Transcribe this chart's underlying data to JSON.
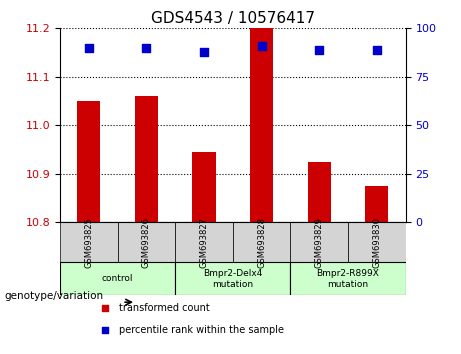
{
  "title": "GDS4543 / 10576417",
  "samples": [
    "GSM693825",
    "GSM693826",
    "GSM693827",
    "GSM693828",
    "GSM693829",
    "GSM693830"
  ],
  "transformed_counts": [
    11.05,
    11.06,
    10.945,
    11.2,
    10.925,
    10.875
  ],
  "percentile_ranks": [
    90,
    90,
    88,
    91,
    89,
    89
  ],
  "ylim_left": [
    10.8,
    11.2
  ],
  "yticks_left": [
    10.8,
    10.9,
    11.0,
    11.1,
    11.2
  ],
  "ylim_right": [
    0,
    100
  ],
  "yticks_right": [
    0,
    25,
    50,
    75,
    100
  ],
  "bar_color": "#cc0000",
  "dot_color": "#0000cc",
  "bar_width": 0.4,
  "groups": [
    {
      "label": "control",
      "samples": [
        "GSM693825",
        "GSM693826"
      ],
      "color": "#ccffcc"
    },
    {
      "label": "Bmpr2-Delx4\nmutation",
      "samples": [
        "GSM693827",
        "GSM693828"
      ],
      "color": "#ccffcc"
    },
    {
      "label": "Bmpr2-R899X\nmutation",
      "samples": [
        "GSM693829",
        "GSM693830"
      ],
      "color": "#ccffcc"
    }
  ],
  "legend_items": [
    {
      "label": "transformed count",
      "color": "#cc0000",
      "marker": "s"
    },
    {
      "label": "percentile rank within the sample",
      "color": "#0000cc",
      "marker": "s"
    }
  ],
  "genotype_label": "genotype/variation",
  "background_plot": "#ffffff",
  "tick_label_color_left": "#cc0000",
  "tick_label_color_right": "#0000cc",
  "grid_linestyle": "dotted",
  "grid_color": "#000000"
}
